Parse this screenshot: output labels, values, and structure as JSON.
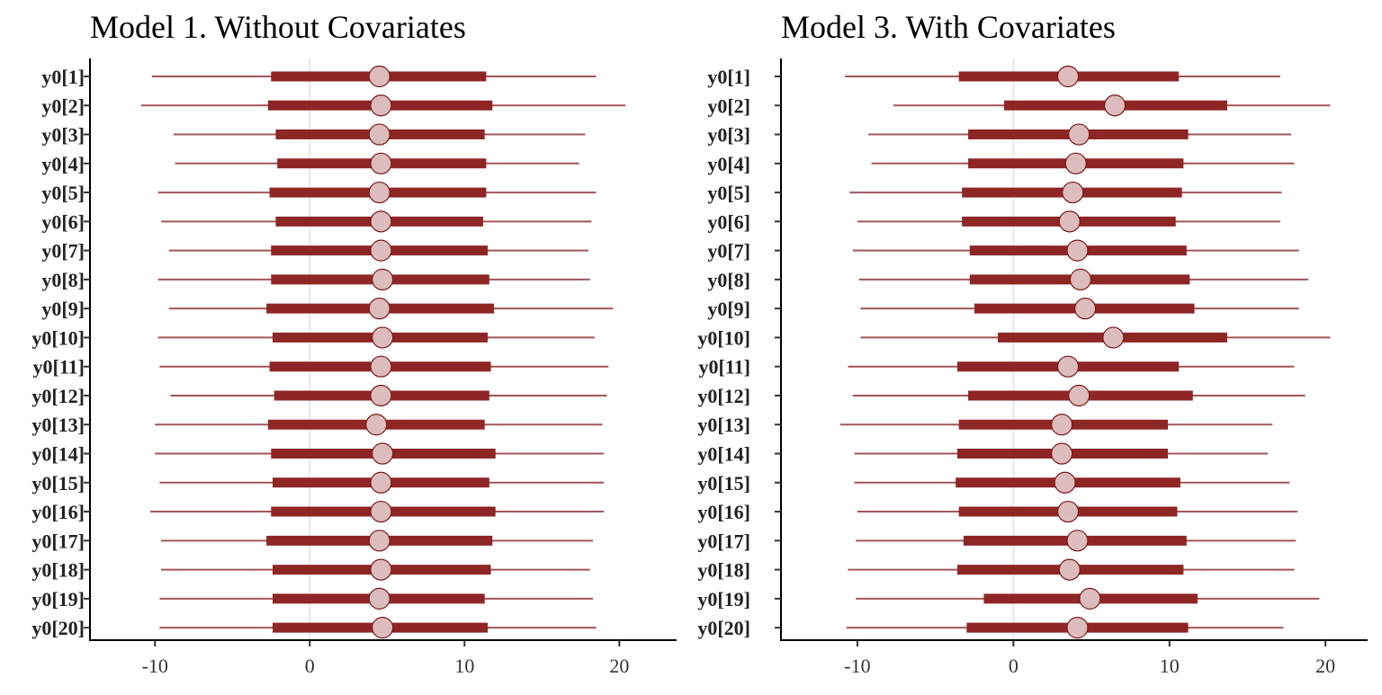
{
  "chart_data": [
    {
      "type": "interval",
      "title": "Model 1. Without Covariates",
      "xlabel": "",
      "ylabel": "",
      "xlim": [
        -14.2,
        23.7
      ],
      "xticks": [
        -10,
        0,
        10,
        20
      ],
      "grid": "vertical line at 0",
      "legend": "none",
      "colors": {
        "outer": "#a2555a",
        "inner": "#8f2626",
        "point_fill": "#dcbcbc",
        "point_stroke": "#7a1818",
        "zero_line": "#e6e6e6"
      },
      "categories": [
        "y0[1]",
        "y0[2]",
        "y0[3]",
        "y0[4]",
        "y0[5]",
        "y0[6]",
        "y0[7]",
        "y0[8]",
        "y0[9]",
        "y0[10]",
        "y0[11]",
        "y0[12]",
        "y0[13]",
        "y0[14]",
        "y0[15]",
        "y0[16]",
        "y0[17]",
        "y0[18]",
        "y0[19]",
        "y0[20]"
      ],
      "outer_low": [
        -10.2,
        -10.9,
        -8.8,
        -8.7,
        -9.8,
        -9.6,
        -9.1,
        -9.8,
        -9.1,
        -9.8,
        -9.7,
        -9.0,
        -10.0,
        -10.0,
        -9.7,
        -10.3,
        -9.6,
        -9.6,
        -9.7,
        -9.7
      ],
      "inner_low": [
        -2.5,
        -2.7,
        -2.2,
        -2.1,
        -2.6,
        -2.2,
        -2.5,
        -2.5,
        -2.8,
        -2.4,
        -2.6,
        -2.3,
        -2.7,
        -2.5,
        -2.4,
        -2.5,
        -2.8,
        -2.4,
        -2.4,
        -2.4
      ],
      "median": [
        4.5,
        4.6,
        4.5,
        4.6,
        4.5,
        4.6,
        4.6,
        4.7,
        4.5,
        4.7,
        4.6,
        4.6,
        4.3,
        4.7,
        4.6,
        4.6,
        4.5,
        4.6,
        4.5,
        4.7
      ],
      "inner_high": [
        11.4,
        11.8,
        11.3,
        11.4,
        11.4,
        11.2,
        11.5,
        11.6,
        11.9,
        11.5,
        11.7,
        11.6,
        11.3,
        12.0,
        11.6,
        12.0,
        11.8,
        11.7,
        11.3,
        11.5
      ],
      "outer_high": [
        18.5,
        20.4,
        17.8,
        17.4,
        18.5,
        18.2,
        18.0,
        18.1,
        19.6,
        18.4,
        19.3,
        19.2,
        18.9,
        19.0,
        19.0,
        19.0,
        18.3,
        18.1,
        18.3,
        18.5
      ]
    },
    {
      "type": "interval",
      "title": "Model 3. With Covariates",
      "xlabel": "",
      "ylabel": "",
      "xlim": [
        -14.9,
        22.7
      ],
      "xticks": [
        -10,
        0,
        10,
        20
      ],
      "grid": "vertical line at 0",
      "legend": "none",
      "colors": {
        "outer": "#a2555a",
        "inner": "#8f2626",
        "point_fill": "#dcbcbc",
        "point_stroke": "#7a1818",
        "zero_line": "#e6e6e6"
      },
      "categories": [
        "y0[1]",
        "y0[2]",
        "y0[3]",
        "y0[4]",
        "y0[5]",
        "y0[6]",
        "y0[7]",
        "y0[8]",
        "y0[9]",
        "y0[10]",
        "y0[11]",
        "y0[12]",
        "y0[13]",
        "y0[14]",
        "y0[15]",
        "y0[16]",
        "y0[17]",
        "y0[18]",
        "y0[19]",
        "y0[20]"
      ],
      "outer_low": [
        -10.8,
        -7.7,
        -9.3,
        -9.1,
        -10.5,
        -10.0,
        -10.3,
        -9.9,
        -9.8,
        -9.8,
        -10.6,
        -10.3,
        -11.1,
        -10.2,
        -10.2,
        -10.0,
        -10.1,
        -10.6,
        -10.1,
        -10.7
      ],
      "inner_low": [
        -3.5,
        -0.6,
        -2.9,
        -2.9,
        -3.3,
        -3.3,
        -2.8,
        -2.8,
        -2.5,
        -1.0,
        -3.6,
        -2.9,
        -3.5,
        -3.6,
        -3.7,
        -3.5,
        -3.2,
        -3.6,
        -1.9,
        -3.0
      ],
      "median": [
        3.5,
        6.5,
        4.2,
        4.0,
        3.8,
        3.6,
        4.1,
        4.3,
        4.6,
        6.4,
        3.5,
        4.2,
        3.1,
        3.1,
        3.3,
        3.5,
        4.1,
        3.6,
        4.9,
        4.1
      ],
      "inner_high": [
        10.6,
        13.7,
        11.2,
        10.9,
        10.8,
        10.4,
        11.1,
        11.3,
        11.6,
        13.7,
        10.6,
        11.5,
        9.9,
        9.9,
        10.7,
        10.5,
        11.1,
        10.9,
        11.8,
        11.2
      ],
      "outer_high": [
        17.1,
        20.3,
        17.8,
        18.0,
        17.2,
        17.1,
        18.3,
        18.9,
        18.3,
        20.3,
        18.0,
        18.7,
        16.6,
        16.3,
        17.7,
        18.2,
        18.1,
        18.0,
        19.6,
        17.3
      ]
    }
  ]
}
